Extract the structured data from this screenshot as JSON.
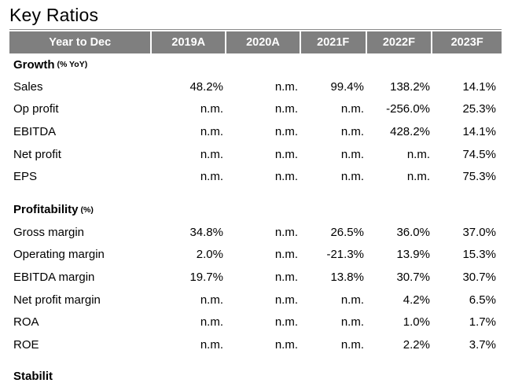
{
  "title": "Key Ratios",
  "header": [
    "Year to Dec",
    "2019A",
    "2020A",
    "2021F",
    "2022F",
    "2023F"
  ],
  "sections": [
    {
      "name": "Growth",
      "unit": "(% YoY)",
      "rows": [
        {
          "label": "Sales",
          "values": [
            "48.2%",
            "n.m.",
            "99.4%",
            "138.2%",
            "14.1%"
          ]
        },
        {
          "label": "Op profit",
          "values": [
            "n.m.",
            "n.m.",
            "n.m.",
            "-256.0%",
            "25.3%"
          ]
        },
        {
          "label": "EBITDA",
          "values": [
            "n.m.",
            "n.m.",
            "n.m.",
            "428.2%",
            "14.1%"
          ]
        },
        {
          "label": "Net profit",
          "values": [
            "n.m.",
            "n.m.",
            "n.m.",
            "n.m.",
            "74.5%"
          ]
        },
        {
          "label": "EPS",
          "values": [
            "n.m.",
            "n.m.",
            "n.m.",
            "n.m.",
            "75.3%"
          ]
        }
      ]
    },
    {
      "name": "Profitability",
      "unit": "(%)",
      "rows": [
        {
          "label": "Gross margin",
          "values": [
            "34.8%",
            "n.m.",
            "26.5%",
            "36.0%",
            "37.0%"
          ]
        },
        {
          "label": "Operating margin",
          "values": [
            "2.0%",
            "n.m.",
            "-21.3%",
            "13.9%",
            "15.3%"
          ]
        },
        {
          "label": "EBITDA margin",
          "values": [
            "19.7%",
            "n.m.",
            "13.8%",
            "30.7%",
            "30.7%"
          ]
        },
        {
          "label": "Net profit margin",
          "values": [
            "n.m.",
            "n.m.",
            "n.m.",
            "4.2%",
            "6.5%"
          ]
        },
        {
          "label": "ROA",
          "values": [
            "n.m.",
            "n.m.",
            "n.m.",
            "1.0%",
            "1.7%"
          ]
        },
        {
          "label": "ROE",
          "values": [
            "n.m.",
            "n.m.",
            "n.m.",
            "2.2%",
            "3.7%"
          ]
        }
      ]
    }
  ],
  "cut_off_section": "Stabilit"
}
